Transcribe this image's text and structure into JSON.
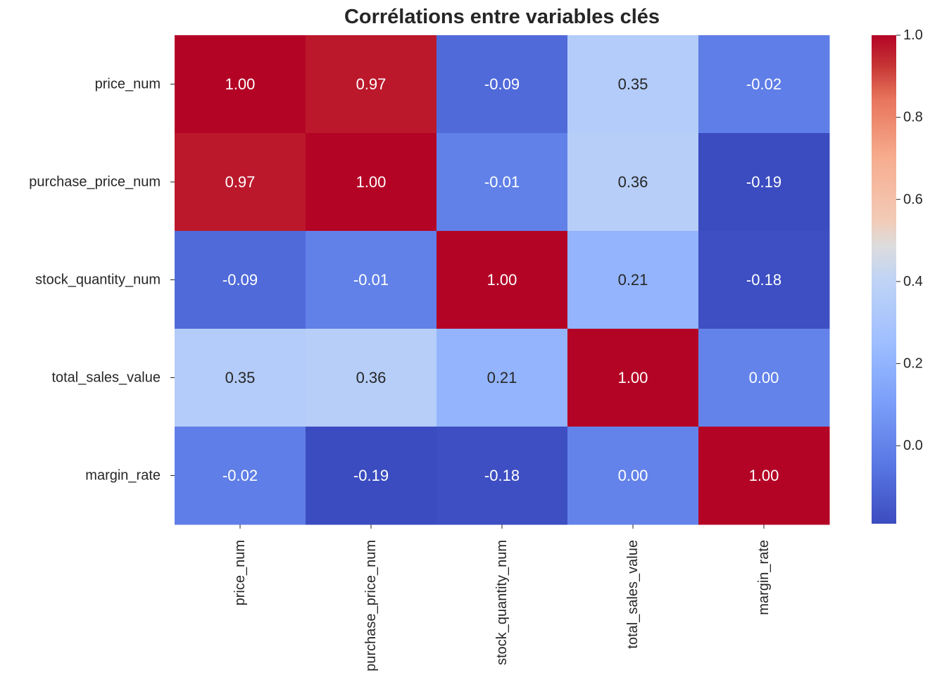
{
  "chart_data": {
    "type": "heatmap",
    "title": "Corrélations entre variables clés",
    "rows": [
      "price_num",
      "purchase_price_num",
      "stock_quantity_num",
      "total_sales_value",
      "margin_rate"
    ],
    "cols": [
      "price_num",
      "purchase_price_num",
      "stock_quantity_num",
      "total_sales_value",
      "margin_rate"
    ],
    "values": [
      [
        1.0,
        0.97,
        -0.09,
        0.35,
        -0.02
      ],
      [
        0.97,
        1.0,
        -0.01,
        0.36,
        -0.19
      ],
      [
        -0.09,
        -0.01,
        1.0,
        0.21,
        -0.18
      ],
      [
        0.35,
        0.36,
        0.21,
        1.0,
        0.0
      ],
      [
        -0.02,
        -0.19,
        -0.18,
        0.0,
        1.0
      ]
    ],
    "cell_labels": [
      [
        "1.00",
        "0.97",
        "-0.09",
        "0.35",
        "-0.02"
      ],
      [
        "0.97",
        "1.00",
        "-0.01",
        "0.36",
        "-0.19"
      ],
      [
        "-0.09",
        "-0.01",
        "1.00",
        "0.21",
        "-0.18"
      ],
      [
        "0.35",
        "0.36",
        "0.21",
        "1.00",
        "0.00"
      ],
      [
        "-0.02",
        "-0.19",
        "-0.18",
        "0.00",
        "1.00"
      ]
    ],
    "colormap": "coolwarm",
    "vmin": -0.19,
    "vmax": 1.0,
    "colorbar": {
      "ticks": [
        0.0,
        0.2,
        0.4,
        0.6,
        0.8,
        1.0
      ],
      "tick_labels": [
        "0.0",
        "0.2",
        "0.4",
        "0.6",
        "0.8",
        "1.0"
      ]
    }
  }
}
